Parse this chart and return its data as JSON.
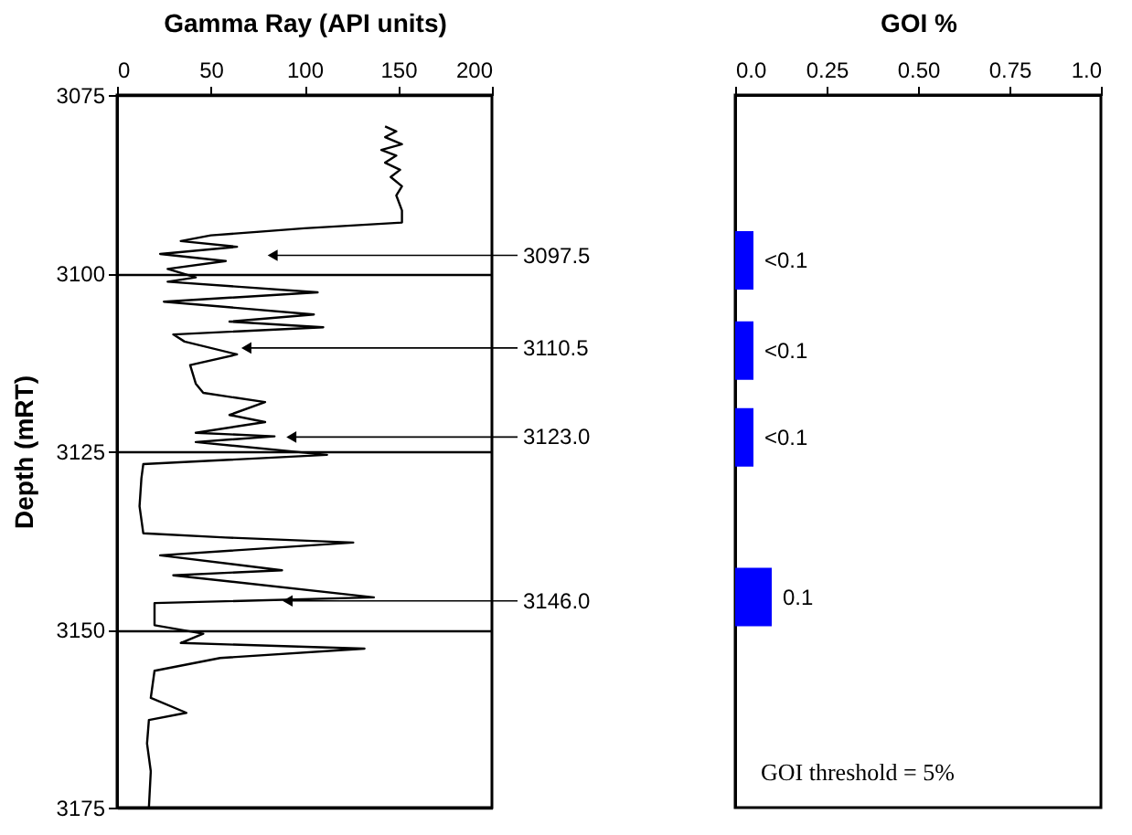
{
  "chart_data": [
    {
      "type": "line",
      "xlabel": "Gamma Ray (API units)",
      "ylabel": "Depth (mRT)",
      "xlim": [
        0,
        200
      ],
      "xticks": [
        0,
        50,
        100,
        150,
        200
      ],
      "ylim": [
        3175,
        3075
      ],
      "yticks": [
        3075,
        3100,
        3125,
        3150,
        3175
      ],
      "grid": "y",
      "series": [
        {
          "color": "#000000",
          "x": [
            143,
            149,
            143,
            152,
            141,
            149,
            143,
            151,
            146,
            152,
            149,
            152,
            152,
            100,
            50,
            34,
            64,
            23,
            58,
            27,
            42,
            27,
            107,
            25,
            105,
            60,
            110,
            30,
            36,
            64,
            39,
            42,
            46,
            79,
            60,
            79,
            42,
            84,
            42,
            112,
            14,
            13,
            12,
            14,
            58,
            126,
            23,
            88,
            30,
            137,
            20,
            20,
            46,
            34,
            132,
            55,
            20,
            18,
            37,
            17,
            16,
            18,
            17
          ],
          "values": [
            3079.4,
            3080.1,
            3080.9,
            3081.9,
            3082.7,
            3083.5,
            3084.5,
            3085.5,
            3086.5,
            3087.8,
            3089.1,
            3091.2,
            3092.9,
            3093.7,
            3094.7,
            3095.5,
            3096.3,
            3097.3,
            3098.3,
            3099.4,
            3100.6,
            3101.2,
            3102.7,
            3104.0,
            3105.8,
            3106.8,
            3107.6,
            3108.6,
            3109.6,
            3111.4,
            3112.9,
            3115.5,
            3116.8,
            3118.1,
            3119.9,
            3120.9,
            3122.4,
            3122.9,
            3123.7,
            3125.5,
            3126.8,
            3128.8,
            3132.7,
            3136.5,
            3137.1,
            3137.8,
            3139.6,
            3141.7,
            3142.4,
            3145.5,
            3146.3,
            3149.4,
            3150.6,
            3151.9,
            3152.7,
            3154.0,
            3155.8,
            3159.6,
            3161.7,
            3162.7,
            3166.0,
            3169.9,
            3175.0
          ]
        }
      ],
      "annotations": [
        {
          "text": "3097.5",
          "x": 83,
          "y": 3097.5
        },
        {
          "text": "3110.5",
          "x": 69,
          "y": 3110.5
        },
        {
          "text": "3123.0",
          "x": 93,
          "y": 3123.0
        },
        {
          "text": "3146.0",
          "x": 91,
          "y": 3146.0
        }
      ]
    },
    {
      "type": "bar",
      "orientation": "horizontal",
      "xlabel": "GOI %",
      "xlim": [
        0,
        1
      ],
      "xticks": [
        {
          "value": 0,
          "label": "0.0"
        },
        0.25,
        {
          "value": 0.5,
          "label": "0.50"
        },
        0.75,
        {
          "value": 1,
          "label": "1.0"
        }
      ],
      "ylim": [
        3175,
        3075
      ],
      "tick_labels": "x",
      "x": [
        3097.5,
        3110.5,
        3123.0,
        3146.0
      ],
      "values": [
        0.05,
        0.05,
        0.05,
        0.1
      ],
      "value_labels": [
        "<0.1",
        "<0.1",
        "<0.1",
        "0.1"
      ],
      "color": "#0000ff",
      "annotations": [
        "GOI threshold = 5%"
      ]
    }
  ]
}
